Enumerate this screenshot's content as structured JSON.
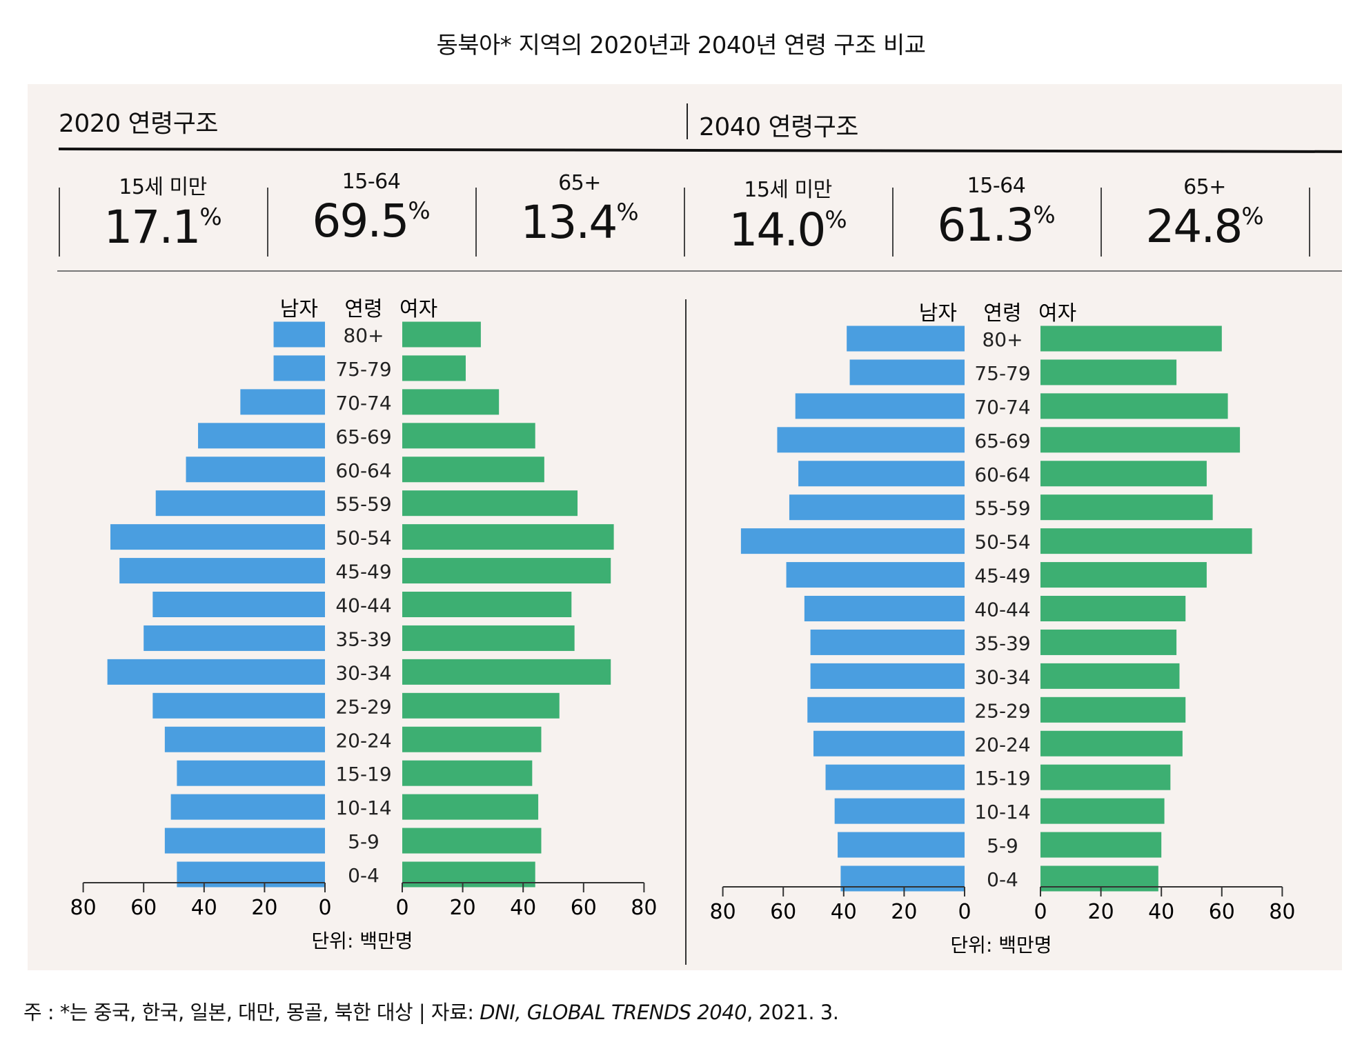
{
  "title": "동북아* 지역의 2020년과 2040년 연령 구조 비교",
  "colors": {
    "male": "#4a9ee0",
    "female": "#3daf72",
    "panel": "#f7f2ef"
  },
  "sections": [
    {
      "title": "2020 연령구조",
      "stats": [
        {
          "label": "15세 미만",
          "value": "17.1",
          "unit": "%"
        },
        {
          "label": "15-64",
          "value": "69.5",
          "unit": "%"
        },
        {
          "label": "65+",
          "value": "13.4",
          "unit": "%"
        }
      ]
    },
    {
      "title": "2040 연령구조",
      "stats": [
        {
          "label": "15세 미만",
          "value": "14.0",
          "unit": "%"
        },
        {
          "label": "15-64",
          "value": "61.3",
          "unit": "%"
        },
        {
          "label": "65+",
          "value": "24.8",
          "unit": "%"
        }
      ]
    }
  ],
  "chart_data": [
    {
      "type": "bar",
      "title": "2020 연령구조",
      "header": {
        "male": "남자",
        "age": "연령",
        "female": "여자"
      },
      "categories": [
        "80+",
        "75-79",
        "70-74",
        "65-69",
        "60-64",
        "55-59",
        "50-54",
        "45-49",
        "40-44",
        "35-39",
        "30-34",
        "25-29",
        "20-24",
        "15-19",
        "10-14",
        "5-9",
        "0-4"
      ],
      "series": [
        {
          "name": "남자",
          "values": [
            17,
            17,
            28,
            42,
            46,
            56,
            71,
            68,
            57,
            60,
            72,
            57,
            53,
            49,
            51,
            53,
            49
          ]
        },
        {
          "name": "여자",
          "values": [
            26,
            21,
            32,
            44,
            47,
            58,
            70,
            69,
            56,
            57,
            69,
            52,
            46,
            43,
            45,
            46,
            44
          ]
        }
      ],
      "xlim": [
        0,
        80
      ],
      "ticks": [
        "80",
        "60",
        "40",
        "20",
        "0"
      ],
      "ticks_right": [
        "0",
        "20",
        "40",
        "60",
        "80"
      ],
      "unit": "단위: 백만명"
    },
    {
      "type": "bar",
      "title": "2040 연령구조",
      "header": {
        "male": "남자",
        "age": "연령",
        "female": "여자"
      },
      "categories": [
        "80+",
        "75-79",
        "70-74",
        "65-69",
        "60-64",
        "55-59",
        "50-54",
        "45-49",
        "40-44",
        "35-39",
        "30-34",
        "25-29",
        "20-24",
        "15-19",
        "10-14",
        "5-9",
        "0-4"
      ],
      "series": [
        {
          "name": "남자",
          "values": [
            39,
            38,
            56,
            62,
            55,
            58,
            74,
            59,
            53,
            51,
            51,
            52,
            50,
            46,
            43,
            42,
            41
          ]
        },
        {
          "name": "여자",
          "values": [
            60,
            45,
            62,
            66,
            55,
            57,
            70,
            55,
            48,
            45,
            46,
            48,
            47,
            43,
            41,
            40,
            39
          ]
        }
      ],
      "xlim": [
        0,
        80
      ],
      "ticks": [
        "80",
        "60",
        "40",
        "20",
        "0"
      ],
      "ticks_right": [
        "0",
        "20",
        "40",
        "60",
        "80"
      ],
      "unit": "단위: 백만명"
    }
  ],
  "footnote": {
    "prefix": "주 : *는 중국, 한국, 일본, 대만, 몽골, 북한 대상 | 자료: ",
    "source": "DNI, GLOBAL TRENDS 2040",
    "suffix": ", 2021. 3."
  }
}
